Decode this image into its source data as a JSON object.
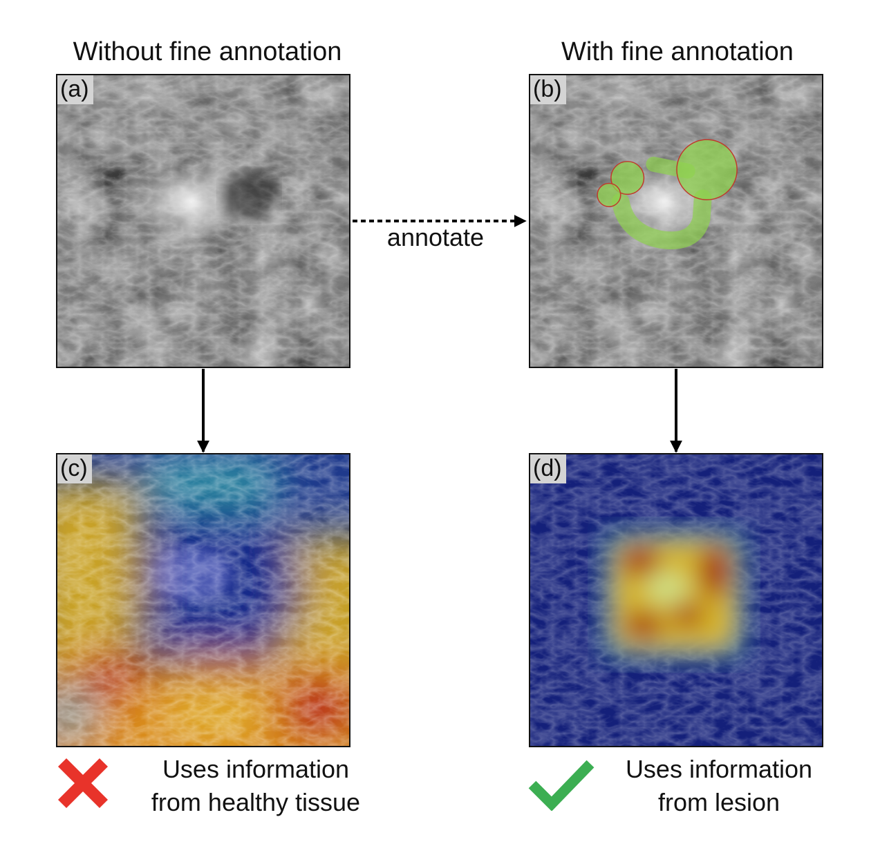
{
  "headings": {
    "left": "Without fine annotation",
    "right": "With fine annotation"
  },
  "panels": {
    "a": "(a)",
    "b": "(b)",
    "c": "(c)",
    "d": "(d)"
  },
  "arrow_label": "annotate",
  "results": {
    "left": {
      "line1": "Uses information",
      "line2": "from healthy tissue",
      "icon": "cross-icon",
      "color": "#e8332a"
    },
    "right": {
      "line1": "Uses information",
      "line2": "from lesion",
      "icon": "check-icon",
      "color": "#3cae52"
    }
  },
  "colors": {
    "annotation_fill": "#8fd14f",
    "annotation_outline": "#c0392b",
    "heatmap_cold": "#1a237e",
    "heatmap_hot": "#b71c1c"
  }
}
